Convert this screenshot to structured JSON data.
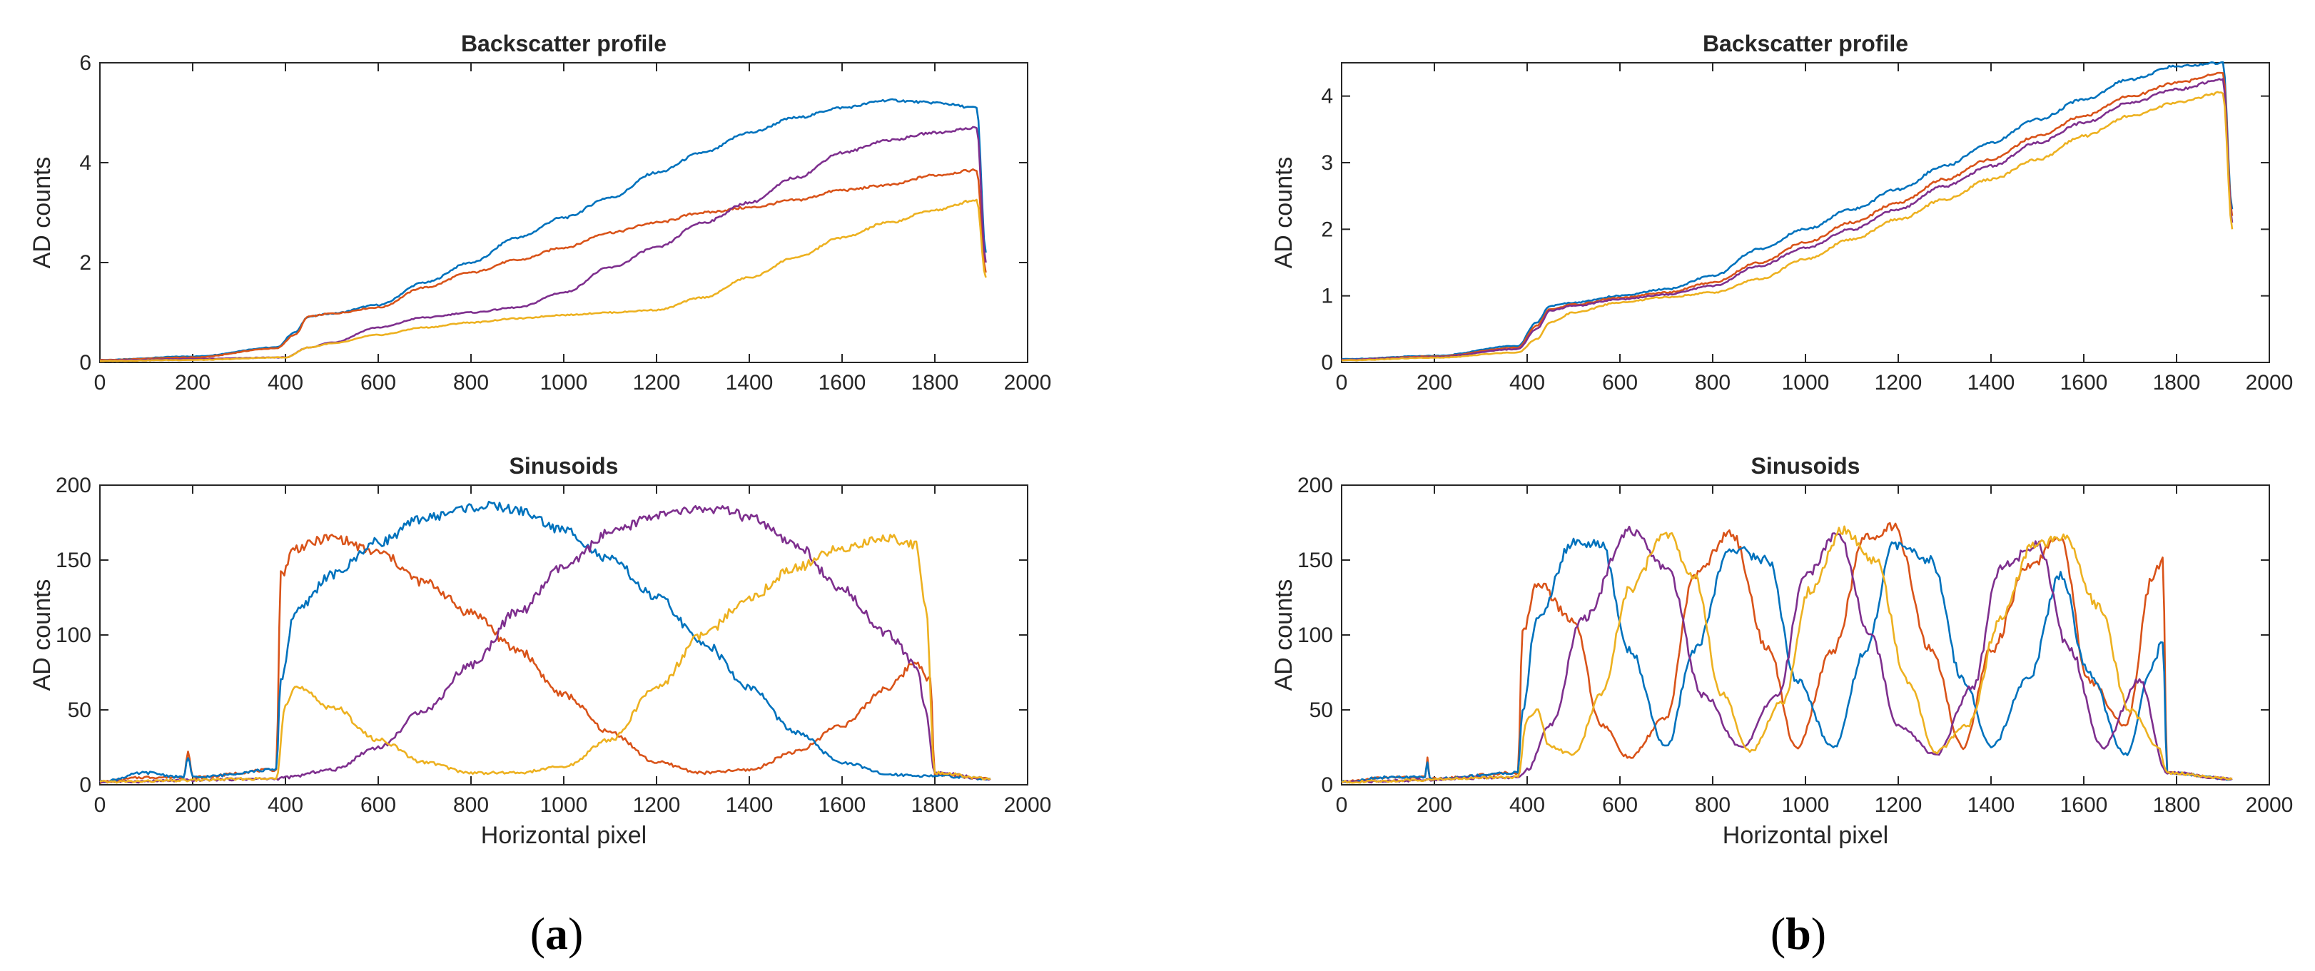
{
  "colors": {
    "blue": "#0072BD",
    "red": "#D95319",
    "yellow": "#EDB120",
    "purple": "#7E2F8E",
    "blue_b": "#0072BD"
  },
  "panel_labels": [
    {
      "open": "(",
      "letter": "a",
      "close": ")"
    },
    {
      "open": "(",
      "letter": "b",
      "close": ")"
    }
  ],
  "chart_data": [
    {
      "id": "a-top",
      "type": "line",
      "title": "Backscatter profile",
      "xlabel": "",
      "ylabel": "AD counts",
      "xlim": [
        0,
        2000
      ],
      "ylim": [
        0,
        6
      ],
      "xticks": [
        0,
        200,
        400,
        600,
        800,
        1000,
        1200,
        1400,
        1600,
        1800,
        2000
      ],
      "yticks": [
        0,
        2,
        4,
        6
      ],
      "series": [
        {
          "name": "blue",
          "color": "#0072BD",
          "x": [
            0,
            200,
            380,
            420,
            450,
            500,
            600,
            700,
            800,
            900,
            1000,
            1100,
            1200,
            1300,
            1400,
            1500,
            1600,
            1700,
            1800,
            1890,
            1910
          ],
          "y": [
            0.05,
            0.12,
            0.3,
            0.6,
            0.92,
            0.98,
            1.15,
            1.6,
            2.0,
            2.5,
            2.9,
            3.3,
            3.8,
            4.2,
            4.6,
            4.9,
            5.1,
            5.25,
            5.2,
            5.1,
            2.2
          ]
        },
        {
          "name": "red",
          "color": "#D95319",
          "x": [
            0,
            200,
            380,
            420,
            450,
            500,
            600,
            700,
            800,
            900,
            1000,
            1100,
            1200,
            1300,
            1400,
            1500,
            1600,
            1700,
            1800,
            1890,
            1910
          ],
          "y": [
            0.05,
            0.1,
            0.28,
            0.55,
            0.92,
            0.98,
            1.1,
            1.5,
            1.8,
            2.05,
            2.3,
            2.6,
            2.8,
            3.0,
            3.1,
            3.25,
            3.45,
            3.55,
            3.75,
            3.85,
            1.8
          ]
        },
        {
          "name": "purple",
          "color": "#7E2F8E",
          "x": [
            0,
            200,
            400,
            450,
            500,
            600,
            700,
            800,
            900,
            1000,
            1100,
            1200,
            1300,
            1400,
            1500,
            1600,
            1700,
            1800,
            1890,
            1910
          ],
          "y": [
            0.04,
            0.07,
            0.1,
            0.3,
            0.4,
            0.7,
            0.9,
            1.0,
            1.1,
            1.4,
            1.9,
            2.3,
            2.8,
            3.2,
            3.7,
            4.2,
            4.45,
            4.6,
            4.7,
            2.0
          ]
        },
        {
          "name": "yellow",
          "color": "#EDB120",
          "x": [
            0,
            200,
            400,
            450,
            500,
            600,
            700,
            800,
            900,
            1000,
            1100,
            1200,
            1300,
            1400,
            1500,
            1600,
            1700,
            1800,
            1890,
            1910
          ],
          "y": [
            0.03,
            0.05,
            0.1,
            0.3,
            0.38,
            0.55,
            0.7,
            0.8,
            0.88,
            0.95,
            1.0,
            1.05,
            1.3,
            1.7,
            2.1,
            2.5,
            2.8,
            3.05,
            3.25,
            1.7
          ]
        }
      ]
    },
    {
      "id": "a-bottom",
      "type": "line",
      "title": "Sinusoids",
      "xlabel": "Horizontal pixel",
      "ylabel": "AD counts",
      "xlim": [
        0,
        2000
      ],
      "ylim": [
        0,
        200
      ],
      "xticks": [
        0,
        200,
        400,
        600,
        800,
        1000,
        1200,
        1400,
        1600,
        1800,
        2000
      ],
      "yticks": [
        0,
        50,
        100,
        150,
        200
      ],
      "series": [
        {
          "name": "red",
          "color": "#D95319",
          "x": [
            0,
            100,
            180,
            190,
            200,
            380,
            390,
            420,
            500,
            600,
            700,
            800,
            900,
            1000,
            1100,
            1200,
            1300,
            1400,
            1500,
            1600,
            1700,
            1760,
            1790,
            1800,
            1920
          ],
          "y": [
            2,
            5,
            5,
            22,
            5,
            10,
            140,
            158,
            165,
            155,
            135,
            115,
            90,
            60,
            35,
            15,
            8,
            10,
            22,
            40,
            65,
            82,
            70,
            7,
            4
          ]
        },
        {
          "name": "blue",
          "color": "#0072BD",
          "x": [
            0,
            100,
            180,
            190,
            200,
            380,
            390,
            420,
            500,
            600,
            700,
            800,
            850,
            900,
            1000,
            1100,
            1200,
            1300,
            1400,
            1500,
            1600,
            1700,
            1780,
            1800,
            1920
          ],
          "y": [
            2,
            8,
            5,
            18,
            5,
            10,
            70,
            115,
            140,
            162,
            178,
            185,
            186,
            183,
            170,
            150,
            125,
            95,
            65,
            35,
            15,
            7,
            6,
            6,
            4
          ]
        },
        {
          "name": "purple",
          "color": "#7E2F8E",
          "x": [
            0,
            380,
            400,
            500,
            600,
            700,
            800,
            900,
            1000,
            1100,
            1200,
            1300,
            1350,
            1400,
            1500,
            1600,
            1700,
            1760,
            1780,
            1800,
            1920
          ],
          "y": [
            2,
            4,
            5,
            10,
            25,
            50,
            80,
            115,
            145,
            168,
            180,
            184,
            183,
            178,
            160,
            130,
            100,
            80,
            50,
            8,
            4
          ]
        },
        {
          "name": "yellow",
          "color": "#EDB120",
          "x": [
            0,
            380,
            400,
            420,
            500,
            600,
            700,
            800,
            900,
            1000,
            1100,
            1200,
            1300,
            1400,
            1500,
            1600,
            1700,
            1760,
            1780,
            1800,
            1920
          ],
          "y": [
            2,
            4,
            55,
            65,
            52,
            30,
            15,
            8,
            8,
            12,
            30,
            65,
            100,
            125,
            145,
            158,
            165,
            160,
            120,
            8,
            4
          ]
        }
      ]
    },
    {
      "id": "b-top",
      "type": "line",
      "title": "Backscatter profile",
      "xlabel": "",
      "ylabel": "AD counts",
      "xlim": [
        0,
        2000
      ],
      "ylim": [
        0,
        4.5
      ],
      "xticks": [
        0,
        200,
        400,
        600,
        800,
        1000,
        1200,
        1400,
        1600,
        1800,
        2000
      ],
      "yticks": [
        0,
        1,
        2,
        3,
        4
      ],
      "series": [
        {
          "name": "blue",
          "color": "#0072BD",
          "x": [
            0,
            200,
            380,
            420,
            450,
            500,
            600,
            700,
            800,
            900,
            1000,
            1100,
            1200,
            1300,
            1400,
            1500,
            1600,
            1700,
            1800,
            1900,
            1920
          ],
          "y": [
            0.05,
            0.1,
            0.25,
            0.6,
            0.85,
            0.9,
            1.0,
            1.1,
            1.3,
            1.7,
            2.0,
            2.3,
            2.6,
            2.95,
            3.3,
            3.65,
            3.95,
            4.25,
            4.45,
            4.5,
            2.3
          ]
        },
        {
          "name": "red",
          "color": "#D95319",
          "x": [
            0,
            200,
            380,
            420,
            450,
            500,
            600,
            700,
            800,
            900,
            1000,
            1100,
            1200,
            1300,
            1400,
            1500,
            1600,
            1700,
            1800,
            1900,
            1920
          ],
          "y": [
            0.04,
            0.09,
            0.22,
            0.55,
            0.8,
            0.87,
            0.97,
            1.05,
            1.2,
            1.5,
            1.8,
            2.1,
            2.4,
            2.75,
            3.05,
            3.4,
            3.7,
            4.0,
            4.2,
            4.35,
            2.2
          ]
        },
        {
          "name": "purple",
          "color": "#7E2F8E",
          "x": [
            0,
            200,
            380,
            420,
            450,
            500,
            600,
            700,
            800,
            900,
            1000,
            1100,
            1200,
            1300,
            1400,
            1500,
            1600,
            1700,
            1800,
            1900,
            1920
          ],
          "y": [
            0.04,
            0.08,
            0.2,
            0.5,
            0.78,
            0.85,
            0.95,
            1.02,
            1.15,
            1.45,
            1.72,
            2.0,
            2.3,
            2.65,
            2.95,
            3.3,
            3.6,
            3.9,
            4.1,
            4.25,
            2.1
          ]
        },
        {
          "name": "yellow",
          "color": "#EDB120",
          "x": [
            0,
            200,
            380,
            420,
            450,
            500,
            600,
            700,
            800,
            900,
            1000,
            1100,
            1200,
            1300,
            1400,
            1500,
            1600,
            1700,
            1800,
            1900,
            1920
          ],
          "y": [
            0.03,
            0.07,
            0.15,
            0.35,
            0.6,
            0.75,
            0.9,
            0.98,
            1.05,
            1.25,
            1.55,
            1.85,
            2.15,
            2.45,
            2.75,
            3.05,
            3.4,
            3.7,
            3.9,
            4.05,
            2.0
          ]
        }
      ]
    },
    {
      "id": "b-bottom",
      "type": "line",
      "title": "Sinusoids",
      "xlabel": "Horizontal pixel",
      "ylabel": "AD counts",
      "xlim": [
        0,
        2000
      ],
      "ylim": [
        0,
        200
      ],
      "xticks": [
        0,
        200,
        400,
        600,
        800,
        1000,
        1200,
        1400,
        1600,
        1800,
        2000
      ],
      "yticks": [
        0,
        50,
        100,
        150,
        200
      ],
      "series": [
        {
          "name": "red",
          "color": "#D95319",
          "x": [
            0,
            100,
            180,
            185,
            190,
            380,
            390,
            420,
            500,
            560,
            620,
            700,
            760,
            840,
            920,
            980,
            1060,
            1130,
            1190,
            1270,
            1340,
            1400,
            1480,
            1550,
            1610,
            1690,
            1750,
            1770,
            1780,
            1920
          ],
          "y": [
            2,
            5,
            5,
            18,
            4,
            8,
            100,
            135,
            110,
            40,
            18,
            45,
            140,
            168,
            90,
            25,
            90,
            165,
            172,
            90,
            25,
            90,
            145,
            165,
            70,
            40,
            140,
            150,
            8,
            4
          ]
        },
        {
          "name": "blue",
          "color": "#0072BD",
          "x": [
            0,
            100,
            180,
            185,
            190,
            380,
            390,
            420,
            500,
            560,
            620,
            700,
            760,
            840,
            920,
            980,
            1060,
            1130,
            1190,
            1270,
            1340,
            1400,
            1480,
            1550,
            1610,
            1690,
            1750,
            1770,
            1780,
            1920
          ],
          "y": [
            2,
            5,
            5,
            16,
            4,
            8,
            50,
            110,
            162,
            160,
            90,
            25,
            90,
            158,
            150,
            70,
            25,
            90,
            160,
            150,
            70,
            25,
            70,
            140,
            75,
            20,
            80,
            98,
            8,
            4
          ]
        },
        {
          "name": "purple",
          "color": "#7E2F8E",
          "x": [
            0,
            380,
            400,
            450,
            520,
            620,
            700,
            780,
            860,
            940,
            1000,
            1070,
            1140,
            1200,
            1280,
            1360,
            1420,
            1500,
            1570,
            1640,
            1720,
            1780,
            1920
          ],
          "y": [
            2,
            5,
            10,
            40,
            110,
            170,
            145,
            60,
            25,
            60,
            140,
            168,
            100,
            40,
            20,
            65,
            145,
            160,
            90,
            25,
            70,
            8,
            4
          ]
        },
        {
          "name": "yellow",
          "color": "#EDB120",
          "x": [
            0,
            380,
            400,
            420,
            450,
            500,
            560,
            620,
            700,
            760,
            820,
            880,
            950,
            1010,
            1080,
            1150,
            1220,
            1280,
            1350,
            1420,
            1490,
            1560,
            1630,
            1700,
            1760,
            1780,
            1920
          ],
          "y": [
            2,
            5,
            45,
            50,
            25,
            20,
            60,
            130,
            168,
            140,
            60,
            22,
            55,
            130,
            170,
            150,
            70,
            22,
            40,
            110,
            160,
            165,
            120,
            50,
            25,
            8,
            4
          ]
        }
      ]
    }
  ]
}
